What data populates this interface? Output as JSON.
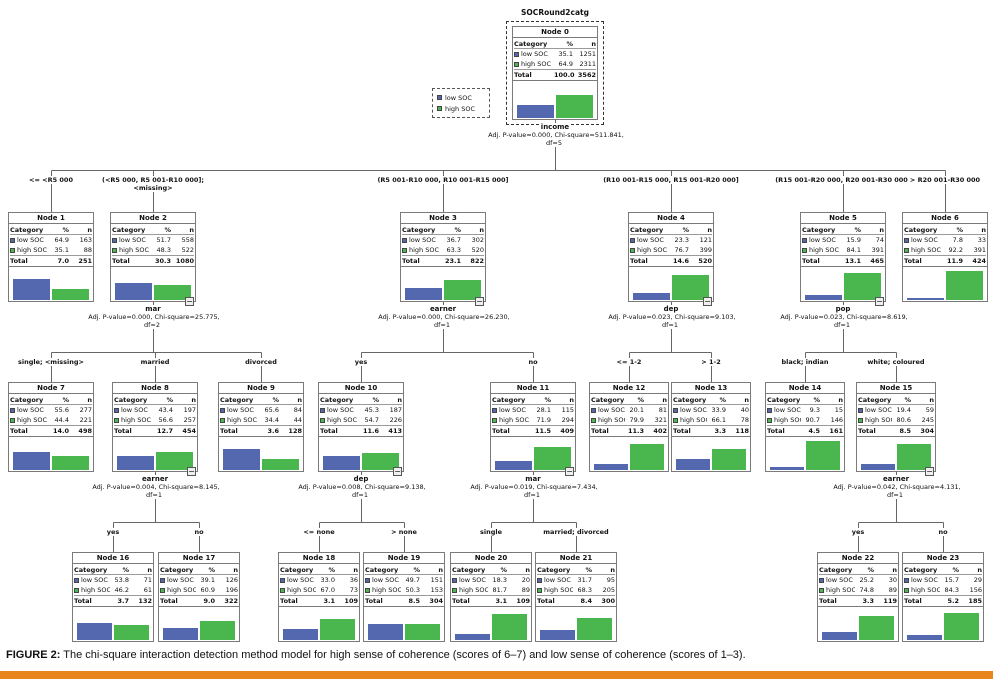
{
  "figure": {
    "dependent_variable": "SOCRound2catg",
    "caption_label": "FIGURE 2:",
    "caption_text": " The chi-square interaction detection method model for high sense of coherence (scores of 6–7) and low sense of coherence (scores of 1–3).",
    "accent_bar_color": "#E8851C"
  },
  "legend": {
    "items": [
      {
        "label": "low SOC",
        "color": "#5468B0"
      },
      {
        "label": "high SOC",
        "color": "#49B64E"
      }
    ]
  },
  "node_table": {
    "category_header": "Category",
    "percent_header": "%",
    "n_header": "n",
    "total_label": "Total"
  },
  "categories": [
    {
      "key": "low",
      "label": "low SOC",
      "color": "#5468B0"
    },
    {
      "key": "high",
      "label": "high SOC",
      "color": "#49B64E"
    }
  ],
  "nodes": [
    {
      "id": 0,
      "title": "Node 0",
      "low_pct": "35.1",
      "low_n": 1251,
      "high_pct": "64.9",
      "high_n": 2311,
      "total_pct": "100.0",
      "total_n": 3562
    },
    {
      "id": 1,
      "title": "Node 1",
      "low_pct": "64.9",
      "low_n": 163,
      "high_pct": "35.1",
      "high_n": 88,
      "total_pct": "7.0",
      "total_n": 251
    },
    {
      "id": 2,
      "title": "Node 2",
      "low_pct": "51.7",
      "low_n": 558,
      "high_pct": "48.3",
      "high_n": 522,
      "total_pct": "30.3",
      "total_n": 1080
    },
    {
      "id": 3,
      "title": "Node 3",
      "low_pct": "36.7",
      "low_n": 302,
      "high_pct": "63.3",
      "high_n": 520,
      "total_pct": "23.1",
      "total_n": 822
    },
    {
      "id": 4,
      "title": "Node 4",
      "low_pct": "23.3",
      "low_n": 121,
      "high_pct": "76.7",
      "high_n": 399,
      "total_pct": "14.6",
      "total_n": 520
    },
    {
      "id": 5,
      "title": "Node 5",
      "low_pct": "15.9",
      "low_n": 74,
      "high_pct": "84.1",
      "high_n": 391,
      "total_pct": "13.1",
      "total_n": 465
    },
    {
      "id": 6,
      "title": "Node 6",
      "low_pct": "7.8",
      "low_n": 33,
      "high_pct": "92.2",
      "high_n": 391,
      "total_pct": "11.9",
      "total_n": 424
    },
    {
      "id": 7,
      "title": "Node 7",
      "low_pct": "55.6",
      "low_n": 277,
      "high_pct": "44.4",
      "high_n": 221,
      "total_pct": "14.0",
      "total_n": 498
    },
    {
      "id": 8,
      "title": "Node 8",
      "low_pct": "43.4",
      "low_n": 197,
      "high_pct": "56.6",
      "high_n": 257,
      "total_pct": "12.7",
      "total_n": 454
    },
    {
      "id": 9,
      "title": "Node 9",
      "low_pct": "65.6",
      "low_n": 84,
      "high_pct": "34.4",
      "high_n": 44,
      "total_pct": "3.6",
      "total_n": 128
    },
    {
      "id": 10,
      "title": "Node 10",
      "low_pct": "45.3",
      "low_n": 187,
      "high_pct": "54.7",
      "high_n": 226,
      "total_pct": "11.6",
      "total_n": 413
    },
    {
      "id": 11,
      "title": "Node 11",
      "low_pct": "28.1",
      "low_n": 115,
      "high_pct": "71.9",
      "high_n": 294,
      "total_pct": "11.5",
      "total_n": 409
    },
    {
      "id": 12,
      "title": "Node 12",
      "low_pct": "20.1",
      "low_n": 81,
      "high_pct": "79.9",
      "high_n": 321,
      "total_pct": "11.3",
      "total_n": 402
    },
    {
      "id": 13,
      "title": "Node 13",
      "low_pct": "33.9",
      "low_n": 40,
      "high_pct": "66.1",
      "high_n": 78,
      "total_pct": "3.3",
      "total_n": 118
    },
    {
      "id": 14,
      "title": "Node 14",
      "low_pct": "9.3",
      "low_n": 15,
      "high_pct": "90.7",
      "high_n": 146,
      "total_pct": "4.5",
      "total_n": 161
    },
    {
      "id": 15,
      "title": "Node 15",
      "low_pct": "19.4",
      "low_n": 59,
      "high_pct": "80.6",
      "high_n": 245,
      "total_pct": "8.5",
      "total_n": 304
    },
    {
      "id": 16,
      "title": "Node 16",
      "low_pct": "53.8",
      "low_n": 71,
      "high_pct": "46.2",
      "high_n": 61,
      "total_pct": "3.7",
      "total_n": 132
    },
    {
      "id": 17,
      "title": "Node 17",
      "low_pct": "39.1",
      "low_n": 126,
      "high_pct": "60.9",
      "high_n": 196,
      "total_pct": "9.0",
      "total_n": 322
    },
    {
      "id": 18,
      "title": "Node 18",
      "low_pct": "33.0",
      "low_n": 36,
      "high_pct": "67.0",
      "high_n": 73,
      "total_pct": "3.1",
      "total_n": 109
    },
    {
      "id": 19,
      "title": "Node 19",
      "low_pct": "49.7",
      "low_n": 151,
      "high_pct": "50.3",
      "high_n": 153,
      "total_pct": "8.5",
      "total_n": 304
    },
    {
      "id": 20,
      "title": "Node 20",
      "low_pct": "18.3",
      "low_n": 20,
      "high_pct": "81.7",
      "high_n": 89,
      "total_pct": "3.1",
      "total_n": 109
    },
    {
      "id": 21,
      "title": "Node 21",
      "low_pct": "31.7",
      "low_n": 95,
      "high_pct": "68.3",
      "high_n": 205,
      "total_pct": "8.4",
      "total_n": 300
    },
    {
      "id": 22,
      "title": "Node 22",
      "low_pct": "25.2",
      "low_n": 30,
      "high_pct": "74.8",
      "high_n": 89,
      "total_pct": "3.3",
      "total_n": 119
    },
    {
      "id": 23,
      "title": "Node 23",
      "low_pct": "15.7",
      "low_n": 29,
      "high_pct": "84.3",
      "high_n": 156,
      "total_pct": "5.2",
      "total_n": 185
    }
  ],
  "splits": [
    {
      "parent": 0,
      "variable": "income",
      "stats": "Adj. P-value=0.000, Chi-square=511.841, df=5",
      "children": [
        1,
        2,
        3,
        4,
        5,
        6
      ]
    },
    {
      "parent": 2,
      "variable": "mar",
      "stats": "Adj. P-value=0.000, Chi-square=25.775, df=2",
      "children": [
        7,
        8,
        9
      ]
    },
    {
      "parent": 3,
      "variable": "earner",
      "stats": "Adj. P-value=0.000, Chi-square=26.230, df=1",
      "children": [
        10,
        11
      ]
    },
    {
      "parent": 4,
      "variable": "dep",
      "stats": "Adj. P-value=0.023, Chi-square=9.103, df=1",
      "children": [
        12,
        13
      ]
    },
    {
      "parent": 5,
      "variable": "pop",
      "stats": "Adj. P-value=0.023, Chi-square=8.619, df=1",
      "children": [
        14,
        15
      ]
    },
    {
      "parent": 8,
      "variable": "earner",
      "stats": "Adj. P-value=0.004, Chi-square=8.145, df=1",
      "children": [
        16,
        17
      ]
    },
    {
      "parent": 10,
      "variable": "dep",
      "stats": "Adj. P-value=0.008, Chi-square=9.138, df=1",
      "children": [
        18,
        19
      ]
    },
    {
      "parent": 11,
      "variable": "mar",
      "stats": "Adj. P-value=0.019, Chi-square=7.434, df=1",
      "children": [
        20,
        21
      ]
    },
    {
      "parent": 15,
      "variable": "earner",
      "stats": "Adj. P-value=0.042, Chi-square=4.131, df=1",
      "children": [
        22,
        23
      ]
    }
  ],
  "edges": {
    "1": "<= <R5 000",
    "2": "(<R5 000, R5 001-R10 000];\n<missing>",
    "3": "(R5 001-R10 000, R10 001-R15 000]",
    "4": "(R10 001-R15 000, R15 001-R20 000]",
    "5": "(R15 001-R20 000, R20 001-R30 000]",
    "6": "> R20 001-R30 000",
    "7": "single; <missing>",
    "8": "married",
    "9": "divorced",
    "10": "yes",
    "11": "no",
    "12": "<= 1-2",
    "13": "> 1-2",
    "14": "black; indian",
    "15": "white; coloured",
    "16": "yes",
    "17": "no",
    "18": "<= none",
    "19": "> none",
    "20": "single",
    "21": "married; divorced",
    "22": "yes",
    "23": "no"
  }
}
